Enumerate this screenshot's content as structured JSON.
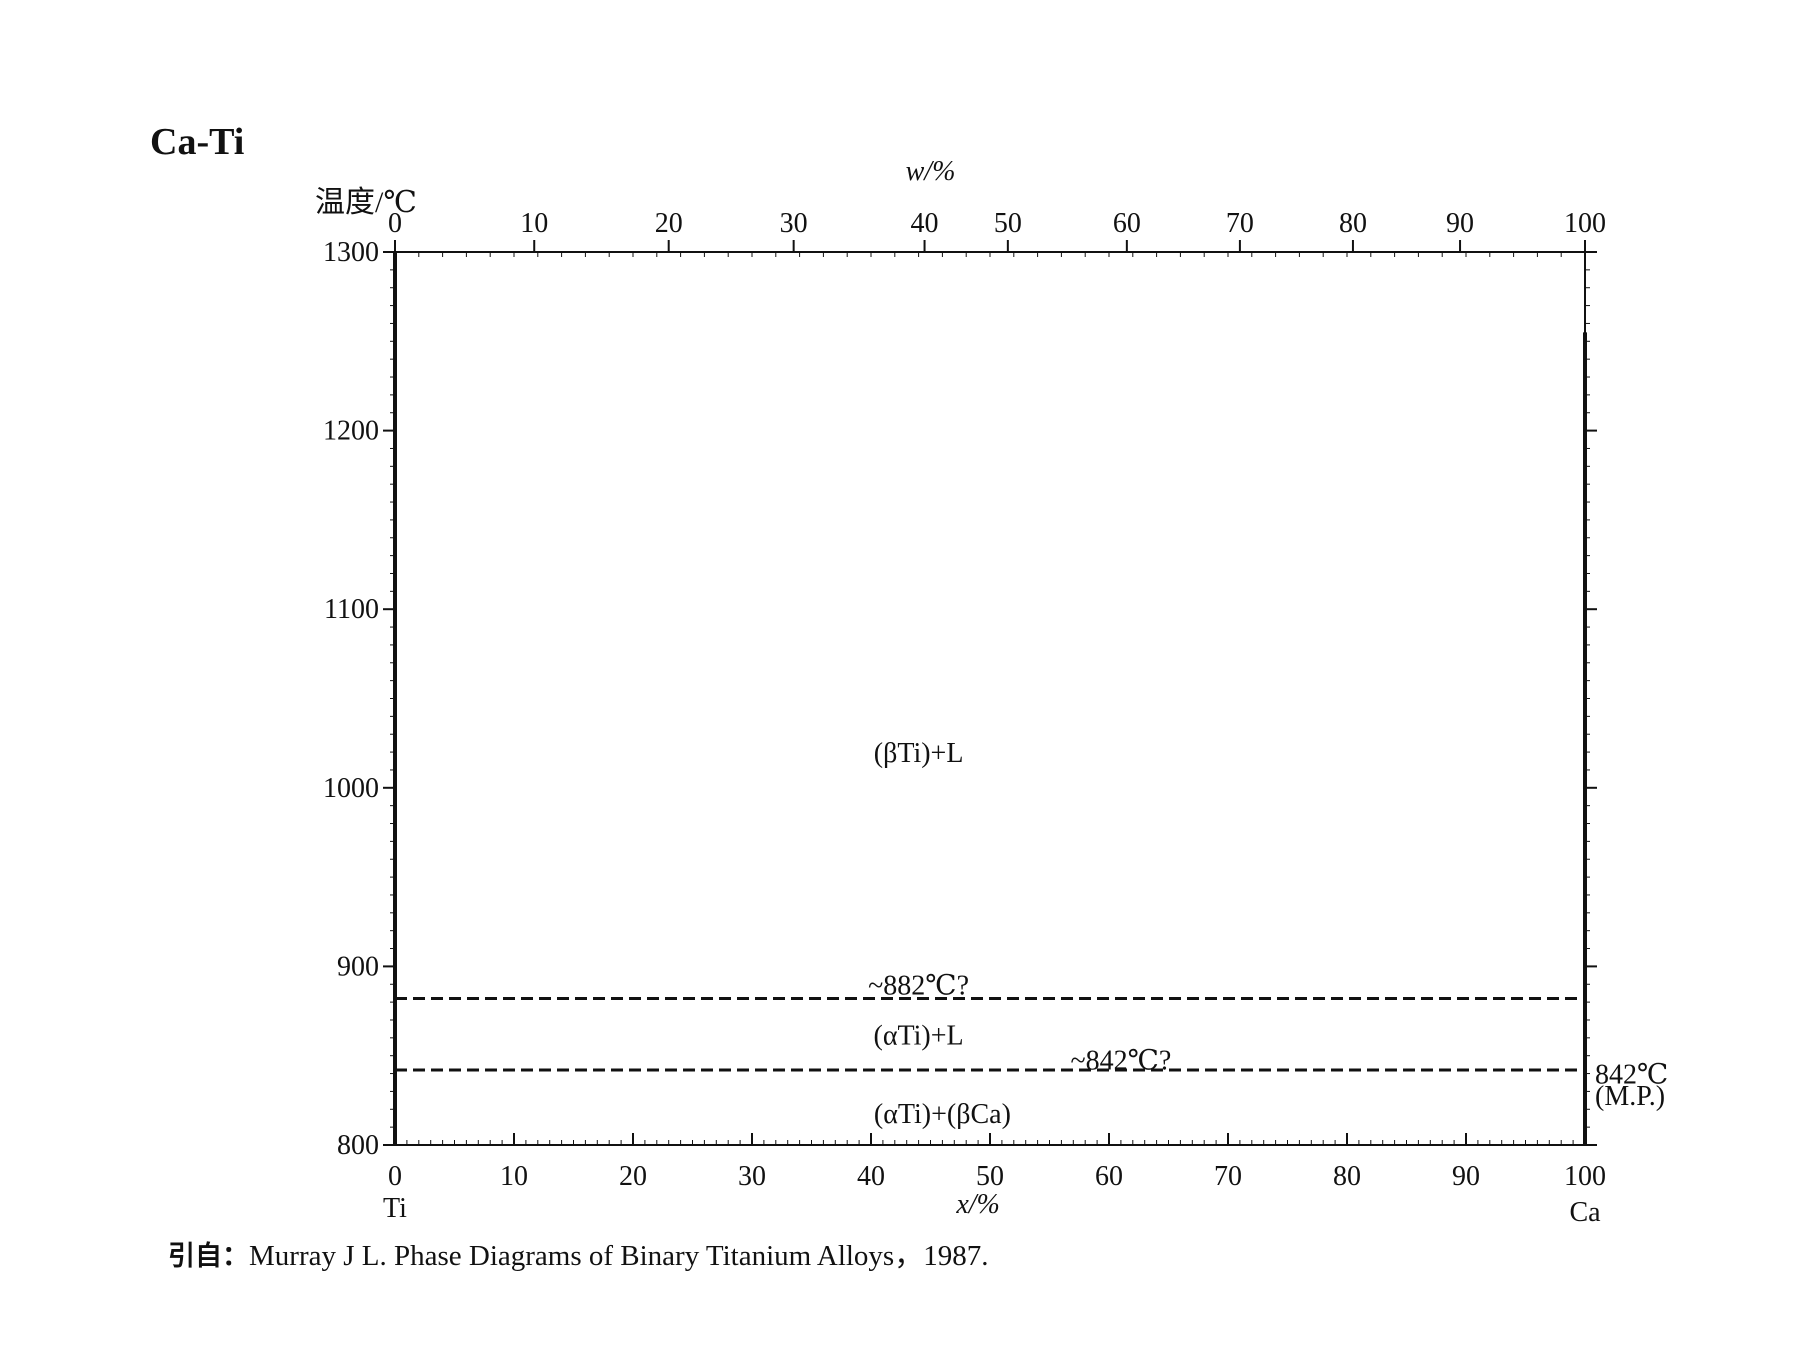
{
  "page": {
    "title": "Ca-Ti",
    "citation_prefix": "引自：",
    "citation_text": "Murray J L.  Phase Diagrams of Binary Titanium Alloys，1987."
  },
  "chart_data": {
    "type": "line",
    "title": "Ca-Ti",
    "ylabel": "温度/℃",
    "xlabel": "x/%",
    "x2label": "w/%",
    "ylim": [
      800,
      1300
    ],
    "xlim": [
      0,
      100
    ],
    "yticks": [
      800,
      900,
      1000,
      1100,
      1200,
      1300
    ],
    "xticks": [
      0,
      10,
      20,
      30,
      40,
      50,
      60,
      70,
      80,
      90,
      100
    ],
    "x2ticks": [
      0,
      10,
      20,
      30,
      40,
      50,
      60,
      70,
      80,
      90,
      100
    ],
    "x2_positions_in_x": [
      0,
      11.7,
      23.0,
      33.5,
      44.5,
      51.5,
      61.5,
      71.0,
      80.5,
      89.5,
      100
    ],
    "left_element": "Ti",
    "right_element": "Ca",
    "grid": false,
    "series": [
      {
        "style": "solid",
        "x": [
          0,
          0
        ],
        "y": [
          800,
          1300
        ]
      },
      {
        "style": "solid",
        "x": [
          100,
          100
        ],
        "y": [
          800,
          1255
        ]
      },
      {
        "style": "dashed",
        "x": [
          0,
          100
        ],
        "y": [
          882,
          882
        ]
      },
      {
        "style": "dashed",
        "x": [
          0,
          100
        ],
        "y": [
          842,
          842
        ]
      }
    ],
    "annotations": [
      {
        "text": "(βTi)+L",
        "x": 44,
        "y": 1020
      },
      {
        "text": "~882℃?",
        "x": 44,
        "y": 890
      },
      {
        "text": "(αTi)+L",
        "x": 44,
        "y": 862
      },
      {
        "text": "~842℃?",
        "x": 61,
        "y": 848
      },
      {
        "text": "(αTi)+(βCa)",
        "x": 46,
        "y": 818
      },
      {
        "text": "842℃",
        "x": 101,
        "y": 840
      },
      {
        "text": "(M.P.)",
        "x": 101,
        "y": 828
      }
    ]
  }
}
